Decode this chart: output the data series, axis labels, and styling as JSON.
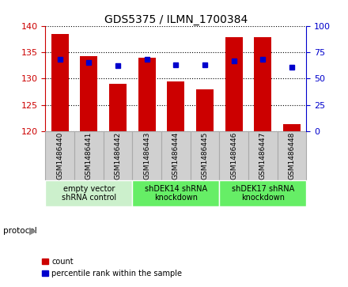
{
  "title": "GDS5375 / ILMN_1700384",
  "samples": [
    "GSM1486440",
    "GSM1486441",
    "GSM1486442",
    "GSM1486443",
    "GSM1486444",
    "GSM1486445",
    "GSM1486446",
    "GSM1486447",
    "GSM1486448"
  ],
  "counts": [
    138.5,
    134.2,
    129.0,
    134.0,
    129.5,
    128.0,
    137.8,
    137.9,
    121.3
  ],
  "percentiles": [
    68,
    65,
    62,
    68,
    63,
    63,
    67,
    68,
    61
  ],
  "group_spans": [
    {
      "start": 0,
      "end": 3,
      "label": "empty vector\nshRNA control",
      "color": "#ccf0cc"
    },
    {
      "start": 3,
      "end": 6,
      "label": "shDEK14 shRNA\nknockdown",
      "color": "#66ee66"
    },
    {
      "start": 6,
      "end": 9,
      "label": "shDEK17 shRNA\nknockdown",
      "color": "#66ee66"
    }
  ],
  "ylim_left": [
    120,
    140
  ],
  "ylim_right": [
    0,
    100
  ],
  "yticks_left": [
    120,
    125,
    130,
    135,
    140
  ],
  "yticks_right": [
    0,
    25,
    50,
    75,
    100
  ],
  "bar_color": "#CC0000",
  "dot_color": "#0000CC",
  "bar_bottom": 120,
  "bar_width": 0.6,
  "left_axis_color": "#CC0000",
  "right_axis_color": "#0000CC",
  "grey_cell_color": "#d0d0d0",
  "cell_edge_color": "#aaaaaa"
}
